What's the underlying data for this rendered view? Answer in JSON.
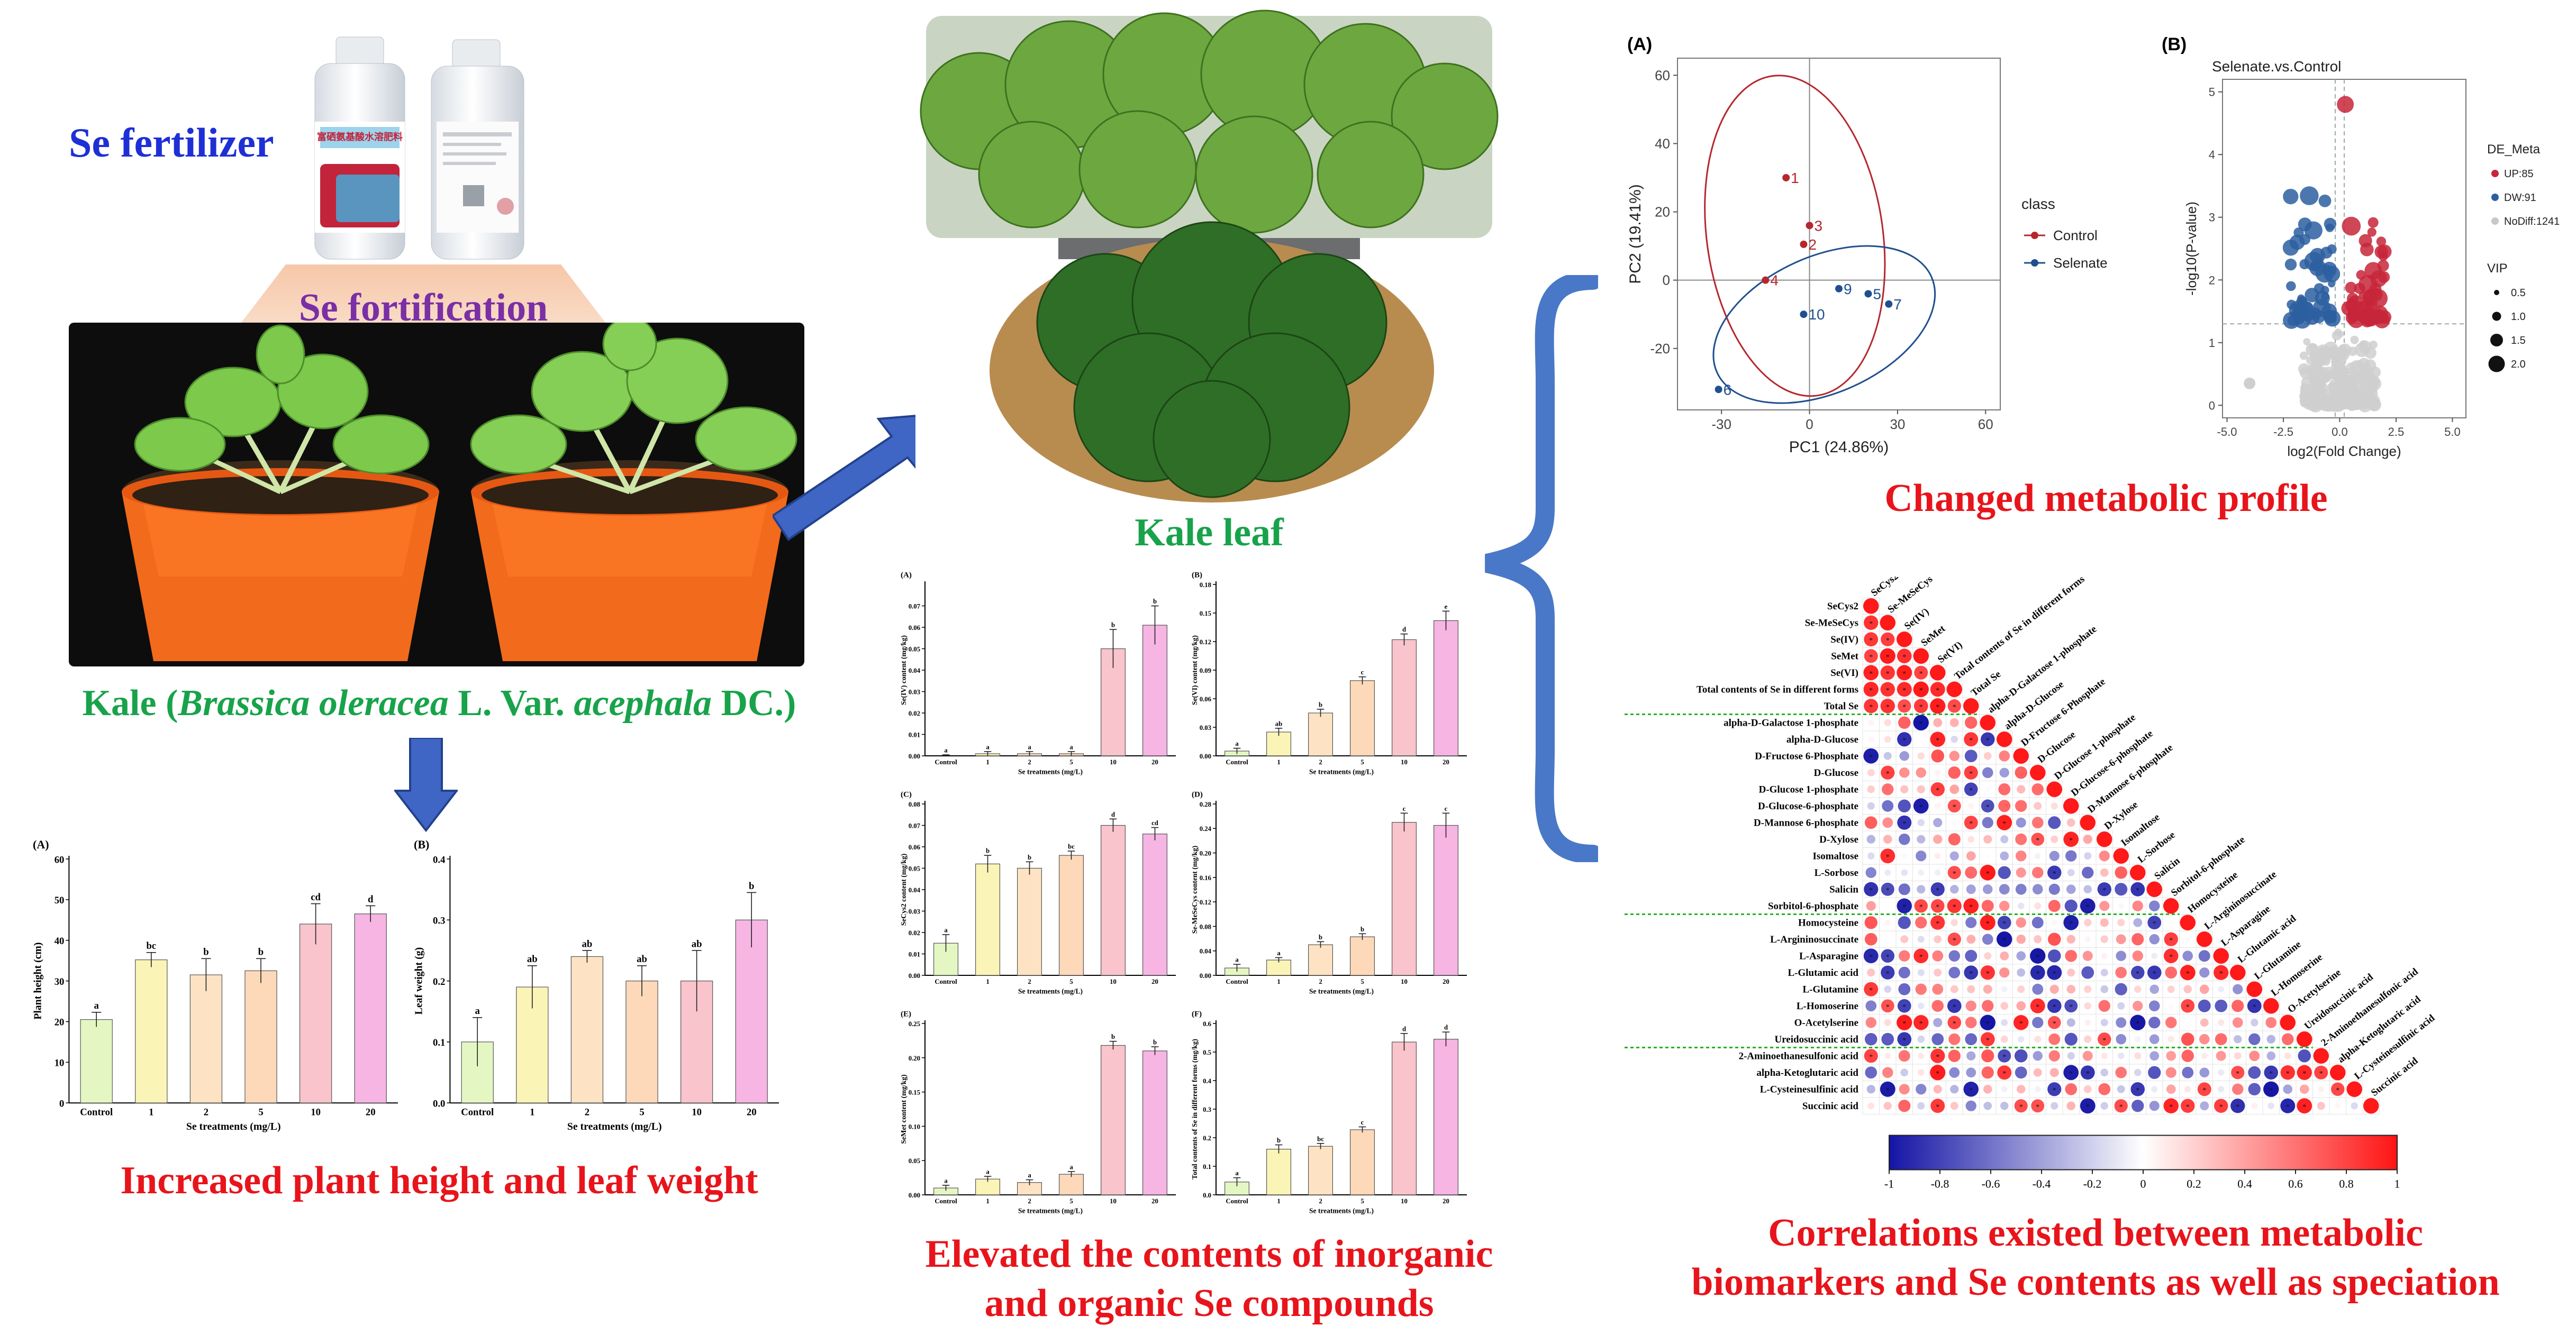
{
  "headings": {
    "se_fertilizer": "Se fertilizer",
    "se_fortification": "Se fortification",
    "kale_prefix": "Kale (",
    "kale_species": "Brassica oleracea",
    "kale_mid": " L. Var. ",
    "kale_variety": "acephala",
    "kale_suffix": " DC.)",
    "kale_leaf": "Kale leaf",
    "increased": "Increased plant height and leaf weight",
    "elevated_line1": "Elevated the contents of inorganic",
    "elevated_line2": "and organic Se compounds",
    "changed_profile": "Changed metabolic profile",
    "corr_line1": "Correlations existed between metabolic",
    "corr_line2": "biomarkers and Se contents as well as speciation"
  },
  "bottle_label": "富硒氨基酸水溶肥料",
  "growth_charts": {
    "x_axis_title": "Se treatments (mg/L)",
    "categories": [
      "Control",
      "1",
      "2",
      "5",
      "10",
      "20"
    ],
    "colors": [
      "#e4f7c2",
      "#fbf4b7",
      "#fde3c3",
      "#fdd9b9",
      "#f9c4cc",
      "#f6b5e3"
    ],
    "panels": [
      {
        "tag": "(A)",
        "ylabel": "Plant height (cm)",
        "ylim": [
          0,
          60
        ],
        "yticks": [
          0,
          10,
          20,
          30,
          40,
          50,
          60
        ],
        "values": [
          20.5,
          35.2,
          31.5,
          32.5,
          44.0,
          46.5
        ],
        "errors": [
          1.8,
          1.8,
          4.0,
          3.0,
          5.0,
          2.0
        ],
        "letters": [
          "a",
          "bc",
          "b",
          "b",
          "cd",
          "d"
        ]
      },
      {
        "tag": "(B)",
        "ylabel": "Leaf weight (g)",
        "ylim": [
          0,
          0.4
        ],
        "yticks": [
          0.0,
          0.1,
          0.2,
          0.3,
          0.4
        ],
        "values": [
          0.1,
          0.19,
          0.24,
          0.2,
          0.2,
          0.3
        ],
        "errors": [
          0.04,
          0.035,
          0.01,
          0.025,
          0.05,
          0.045
        ],
        "letters": [
          "a",
          "ab",
          "ab",
          "ab",
          "ab",
          "b"
        ]
      }
    ]
  },
  "se_charts": {
    "x_axis_title": "Se treatments (mg/L)",
    "categories": [
      "Control",
      "1",
      "2",
      "5",
      "10",
      "20"
    ],
    "colors": [
      "#e4f7c2",
      "#fbf4b7",
      "#fde3c3",
      "#fdd9b9",
      "#f9c4cc",
      "#f6b5e3"
    ],
    "panels": [
      {
        "tag": "(A)",
        "ylabel": "Se(IV) content (mg/kg)",
        "ylim": [
          0,
          0.08
        ],
        "yticks": [
          0.0,
          0.01,
          0.02,
          0.03,
          0.04,
          0.05,
          0.06,
          0.07
        ],
        "values": [
          0.0,
          0.001,
          0.001,
          0.001,
          0.05,
          0.061
        ],
        "errors": [
          0.0005,
          0.001,
          0.001,
          0.001,
          0.009,
          0.009
        ],
        "letters": [
          "a",
          "a",
          "a",
          "a",
          "b",
          "b"
        ]
      },
      {
        "tag": "(B)",
        "ylabel": "Se(VI) content (mg/kg)",
        "ylim": [
          0,
          0.18
        ],
        "yticks": [
          0.0,
          0.03,
          0.06,
          0.09,
          0.12,
          0.15,
          0.18
        ],
        "values": [
          0.005,
          0.025,
          0.045,
          0.079,
          0.122,
          0.142
        ],
        "errors": [
          0.003,
          0.004,
          0.004,
          0.004,
          0.006,
          0.01
        ],
        "letters": [
          "a",
          "ab",
          "b",
          "c",
          "d",
          "e"
        ]
      },
      {
        "tag": "(C)",
        "ylabel": "SeCys2 content (mg/kg)",
        "ylim": [
          0,
          0.08
        ],
        "yticks": [
          0.0,
          0.01,
          0.02,
          0.03,
          0.04,
          0.05,
          0.06,
          0.07,
          0.08
        ],
        "values": [
          0.015,
          0.052,
          0.05,
          0.056,
          0.07,
          0.066
        ],
        "errors": [
          0.004,
          0.004,
          0.003,
          0.002,
          0.003,
          0.003
        ],
        "letters": [
          "a",
          "b",
          "b",
          "bc",
          "d",
          "cd"
        ]
      },
      {
        "tag": "(D)",
        "ylabel": "Se-MeSeCys content (mg/kg)",
        "ylim": [
          0,
          0.28
        ],
        "yticks": [
          0.0,
          0.04,
          0.08,
          0.12,
          0.16,
          0.2,
          0.24,
          0.28
        ],
        "values": [
          0.012,
          0.025,
          0.05,
          0.063,
          0.25,
          0.245
        ],
        "errors": [
          0.006,
          0.004,
          0.005,
          0.005,
          0.015,
          0.02
        ],
        "letters": [
          "a",
          "a",
          "b",
          "b",
          "c",
          "c"
        ]
      },
      {
        "tag": "(E)",
        "ylabel": "SeMet content (mg/kg)",
        "ylim": [
          0,
          0.25
        ],
        "yticks": [
          0.0,
          0.05,
          0.1,
          0.15,
          0.2,
          0.25
        ],
        "values": [
          0.01,
          0.023,
          0.018,
          0.03,
          0.218,
          0.21
        ],
        "errors": [
          0.004,
          0.004,
          0.004,
          0.004,
          0.006,
          0.006
        ],
        "letters": [
          "a",
          "a",
          "a",
          "a",
          "b",
          "b"
        ]
      },
      {
        "tag": "(F)",
        "ylabel": "Total contents of Se in different forms (mg/kg)",
        "ylim": [
          0,
          0.6
        ],
        "yticks": [
          0.0,
          0.1,
          0.2,
          0.3,
          0.4,
          0.5,
          0.6
        ],
        "values": [
          0.045,
          0.16,
          0.17,
          0.228,
          0.535,
          0.545
        ],
        "errors": [
          0.015,
          0.015,
          0.01,
          0.01,
          0.03,
          0.025
        ],
        "letters": [
          "a",
          "b",
          "bc",
          "c",
          "d",
          "d"
        ]
      }
    ]
  },
  "pca": {
    "tag": "(A)",
    "xlabel": "PC1 (24.86%)",
    "ylabel": "PC2 (19.41%)",
    "xlim": [
      -45,
      65
    ],
    "ylim": [
      -38,
      65
    ],
    "xticks": [
      -30,
      0,
      30,
      60
    ],
    "yticks": [
      -20,
      0,
      20,
      40,
      60
    ],
    "legend_title": "class",
    "classes": [
      {
        "name": "Control",
        "color": "#b5272d"
      },
      {
        "name": "Selenate",
        "color": "#1f4f8f"
      }
    ],
    "points": [
      {
        "label": "1",
        "x": -8,
        "y": 30,
        "cls": 0
      },
      {
        "label": "2",
        "x": -2,
        "y": 10.5,
        "cls": 0
      },
      {
        "label": "3",
        "x": 0,
        "y": 16,
        "cls": 0
      },
      {
        "label": "4",
        "x": -15,
        "y": 0,
        "cls": 0
      },
      {
        "label": "9",
        "x": 10,
        "y": -2.5,
        "cls": 1
      },
      {
        "label": "5",
        "x": 20,
        "y": -4,
        "cls": 1
      },
      {
        "label": "7",
        "x": 27,
        "y": -7,
        "cls": 1
      },
      {
        "label": "10",
        "x": -2,
        "y": -10,
        "cls": 1
      },
      {
        "label": "6",
        "x": -31,
        "y": -32,
        "cls": 1
      }
    ]
  },
  "volcano": {
    "tag": "(B)",
    "title": "Selenate.vs.Control",
    "xlabel": "log2(Fold Change)",
    "ylabel": "-log10(P-value)",
    "xlim": [
      -5.2,
      5.6
    ],
    "ylim": [
      -0.2,
      5.2
    ],
    "xticks": [
      -5.0,
      -2.5,
      0.0,
      2.5,
      5.0
    ],
    "yticks": [
      0,
      1,
      2,
      3,
      4,
      5
    ],
    "legend_title": "DE_Meta",
    "legend_items": [
      {
        "label": "UP:85",
        "color": "#c7263a"
      },
      {
        "label": "DW:91",
        "color": "#2d5fa0"
      },
      {
        "label": "NoDiff:1241",
        "color": "#c8c8c8"
      }
    ],
    "vip_title": "VIP",
    "vip_items": [
      "0.5",
      "1.0",
      "1.5",
      "2.0"
    ]
  },
  "heatmap": {
    "variables": [
      "SeCys2",
      "Se-MeSeCys",
      "Se(IV)",
      "SeMet",
      "Se(VI)",
      "Total contents of Se in different forms",
      "Total Se",
      "alpha-D-Galactose 1-phosphate",
      "alpha-D-Glucose",
      "D-Fructose 6-Phosphate",
      "D-Glucose",
      "D-Glucose 1-phosphate",
      "D-Glucose-6-phosphate",
      "D-Mannose 6-phosphate",
      "D-Xylose",
      "Isomaltose",
      "L-Sorbose",
      "Salicin",
      "Sorbitol-6-phosphate",
      "Homocysteine",
      "L-Argininosuccinate",
      "L-Asparagine",
      "L-Glutamic acid",
      "L-Glutamine",
      "L-Homoserine",
      "O-Acetylserine",
      "Ureidosuccinic acid",
      "2-Aminoethanesulfonic acid",
      "alpha-Ketoglutaric acid",
      "L-Cysteinesulfinic acid",
      "Succinic acid"
    ],
    "colorbar_ticks": [
      "-1",
      "-0.8",
      "-0.6",
      "-0.4",
      "-0.2",
      "0",
      "0.2",
      "0.4",
      "0.6",
      "0.8",
      "1"
    ]
  }
}
